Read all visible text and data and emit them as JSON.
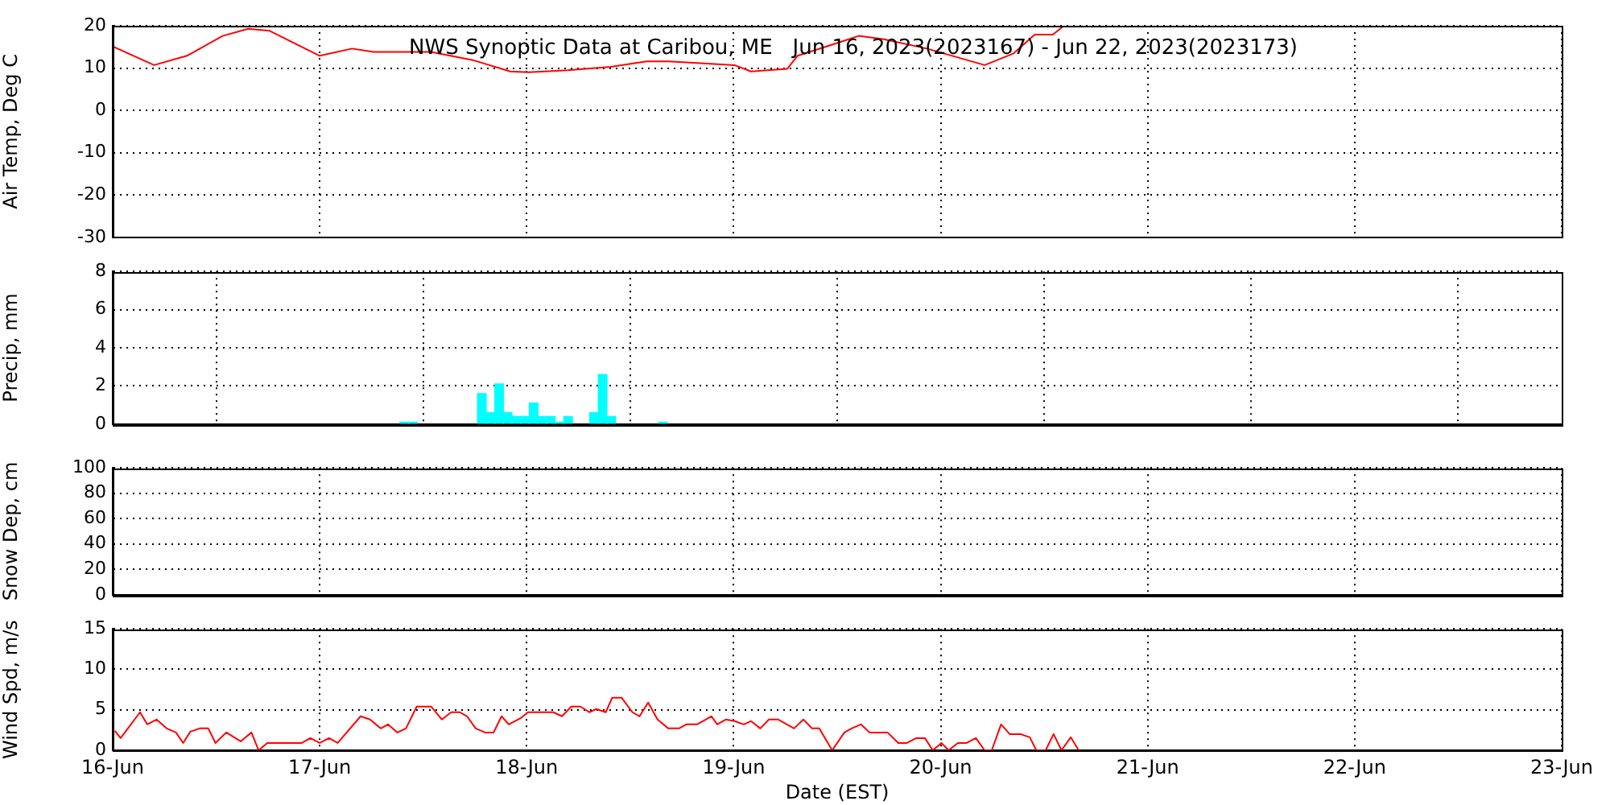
{
  "chart_data": [
    {
      "type": "line",
      "title": "NWS Synoptic Data at Caribou, ME   Jun 16, 2023(2023167) - Jun 22, 2023(2023173)",
      "ylabel": "Air Temp, Deg C",
      "xlim": [
        "2023-06-16",
        "2023-06-23"
      ],
      "xticks": [
        "2023-06-16",
        "2023-06-17",
        "2023-06-18",
        "2023-06-19",
        "2023-06-20",
        "2023-06-21",
        "2023-06-22",
        "2023-06-23"
      ],
      "ylim": [
        -30,
        20
      ],
      "yticks": [
        -30,
        -20,
        -10,
        0,
        10,
        20
      ],
      "tick_labels": "y",
      "grid": true,
      "marker": "none",
      "series": [
        {
          "color": "#ff0000",
          "x": [
            "2023-06-16T00:00",
            "2023-06-16T04:48",
            "2023-06-16T08:36",
            "2023-06-16T12:45",
            "2023-06-16T15:42",
            "2023-06-16T18:12",
            "2023-06-17T00:00",
            "2023-06-17T03:45",
            "2023-06-17T06:15",
            "2023-06-17T12:54",
            "2023-06-17T17:54",
            "2023-06-17T22:06",
            "2023-06-18T00:12",
            "2023-06-18T04:45",
            "2023-06-18T09:45",
            "2023-06-18T13:54",
            "2023-06-18T16:24",
            "2023-06-18T19:45",
            "2023-06-19T00:06",
            "2023-06-19T02:00",
            "2023-06-19T06:12",
            "2023-06-19T07:24",
            "2023-06-19T12:24",
            "2023-06-19T14:30",
            "2023-06-19T17:24",
            "2023-06-19T22:24",
            "2023-06-20T05:06",
            "2023-06-20T08:24",
            "2023-06-20T10:54",
            "2023-06-20T13:00",
            "2023-06-20T14:18"
          ],
          "values": [
            15.1,
            10.7,
            12.9,
            17.6,
            19.3,
            18.8,
            12.9,
            14.6,
            13.8,
            13.8,
            11.8,
            9.2,
            9.0,
            9.5,
            10.3,
            11.6,
            11.6,
            11.2,
            10.7,
            9.2,
            9.8,
            12.9,
            16.2,
            17.6,
            16.8,
            14.6,
            10.7,
            13.4,
            17.9,
            17.9,
            20
          ]
        }
      ]
    },
    {
      "type": "bar",
      "ylabel": "Precip, mm",
      "xlim": [
        "2023-06-16",
        "2023-06-23"
      ],
      "xticks": [
        "2023-06-16",
        "2023-06-17",
        "2023-06-18",
        "2023-06-19",
        "2023-06-20",
        "2023-06-21",
        "2023-06-22",
        "2023-06-23"
      ],
      "ylim": [
        0,
        8
      ],
      "yticks": [
        0,
        2,
        4,
        6,
        8
      ],
      "tick_labels": "y",
      "grid": true,
      "series": [
        {
          "color": "#00ffff",
          "x": [
            "2023-06-17T09:48",
            "2023-06-17T10:48",
            "2023-06-17T18:48",
            "2023-06-17T19:48",
            "2023-06-17T20:48",
            "2023-06-17T21:48",
            "2023-06-17T22:48",
            "2023-06-17T23:48",
            "2023-06-18T00:48",
            "2023-06-18T01:48",
            "2023-06-18T02:48",
            "2023-06-18T03:48",
            "2023-06-18T04:48",
            "2023-06-18T07:48",
            "2023-06-18T08:48",
            "2023-06-18T09:48",
            "2023-06-18T15:48"
          ],
          "values": [
            0.1,
            0.1,
            1.6,
            0.6,
            2.1,
            0.6,
            0.4,
            0.4,
            1.1,
            0.4,
            0.4,
            0.1,
            0.4,
            0.6,
            2.6,
            0.4,
            0.1
          ]
        }
      ]
    },
    {
      "type": "line",
      "ylabel": "Snow Dep, cm",
      "xlim": [
        "2023-06-16",
        "2023-06-23"
      ],
      "xticks": [
        "2023-06-16",
        "2023-06-17",
        "2023-06-18",
        "2023-06-19",
        "2023-06-20",
        "2023-06-21",
        "2023-06-22",
        "2023-06-23"
      ],
      "ylim": [
        0,
        100
      ],
      "yticks": [
        0,
        20,
        40,
        60,
        80,
        100
      ],
      "tick_labels": "y",
      "grid": true
    },
    {
      "type": "line",
      "xlabel": "Date (EST)",
      "ylabel": "Wind Spd, m/s",
      "xlim": [
        "2023-06-16",
        "2023-06-23"
      ],
      "xticks": [
        {
          "value": "2023-06-16",
          "label": "16-Jun"
        },
        {
          "value": "2023-06-17",
          "label": "17-Jun"
        },
        {
          "value": "2023-06-18",
          "label": "18-Jun"
        },
        {
          "value": "2023-06-19",
          "label": "19-Jun"
        },
        {
          "value": "2023-06-20",
          "label": "20-Jun"
        },
        {
          "value": "2023-06-21",
          "label": "21-Jun"
        },
        {
          "value": "2023-06-22",
          "label": "22-Jun"
        },
        {
          "value": "2023-06-23",
          "label": "23-Jun"
        }
      ],
      "ylim": [
        0,
        15
      ],
      "yticks": [
        0,
        5,
        10,
        15
      ],
      "grid": true,
      "marker": "none",
      "series": [
        {
          "color": "#ff0000",
          "x": [
            "2023-06-16T00:15",
            "2023-06-16T00:55",
            "2023-06-16T03:10",
            "2023-06-16T04:00",
            "2023-06-16T05:05",
            "2023-06-16T06:15",
            "2023-06-16T07:20",
            "2023-06-16T08:10",
            "2023-06-16T09:00",
            "2023-06-16T10:05",
            "2023-06-16T11:05",
            "2023-06-16T11:55",
            "2023-06-16T13:10",
            "2023-06-16T14:50",
            "2023-06-16T16:05",
            "2023-06-16T16:55",
            "2023-06-16T17:55",
            "2023-06-16T21:55",
            "2023-06-16T22:55",
            "2023-06-17T00:00",
            "2023-06-17T01:05",
            "2023-06-17T02:05",
            "2023-06-17T04:45",
            "2023-06-17T05:50",
            "2023-06-17T07:05",
            "2023-06-17T07:55",
            "2023-06-17T09:00",
            "2023-06-17T10:00",
            "2023-06-17T11:15",
            "2023-06-17T12:55",
            "2023-06-17T14:10",
            "2023-06-17T15:15",
            "2023-06-17T16:15",
            "2023-06-17T17:05",
            "2023-06-17T18:05",
            "2023-06-17T19:10",
            "2023-06-17T20:10",
            "2023-06-17T21:05",
            "2023-06-17T21:55",
            "2023-06-17T23:20",
            "2023-06-18T00:10",
            "2023-06-18T03:05",
            "2023-06-18T04:05",
            "2023-06-18T05:10",
            "2023-06-18T06:15",
            "2023-06-18T07:15",
            "2023-06-18T08:05",
            "2023-06-18T09:10",
            "2023-06-18T09:55",
            "2023-06-18T11:00",
            "2023-06-18T12:15",
            "2023-06-18T13:05",
            "2023-06-18T14:05",
            "2023-06-18T15:10",
            "2023-06-18T16:25",
            "2023-06-18T17:40",
            "2023-06-18T18:30",
            "2023-06-18T19:45",
            "2023-06-18T21:25",
            "2023-06-18T22:05",
            "2023-06-18T23:05",
            "2023-06-19T00:05",
            "2023-06-19T01:10",
            "2023-06-19T02:00",
            "2023-06-19T03:05",
            "2023-06-19T04:05",
            "2023-06-19T05:10",
            "2023-06-19T06:10",
            "2023-06-19T07:00",
            "2023-06-19T08:05",
            "2023-06-19T09:05",
            "2023-06-19T09:55",
            "2023-06-19T11:25",
            "2023-06-19T12:50",
            "2023-06-19T13:40",
            "2023-06-19T14:45",
            "2023-06-19T15:45",
            "2023-06-19T17:50",
            "2023-06-19T19:05",
            "2023-06-19T20:05",
            "2023-06-19T21:10",
            "2023-06-19T22:10",
            "2023-06-19T23:05",
            "2023-06-20T00:05",
            "2023-06-20T00:55",
            "2023-06-20T02:00",
            "2023-06-20T03:00",
            "2023-06-20T04:05",
            "2023-06-20T05:05",
            "2023-06-20T05:55",
            "2023-06-20T07:00",
            "2023-06-20T08:00",
            "2023-06-20T09:15",
            "2023-06-20T10:20",
            "2023-06-20T11:05",
            "2023-06-20T12:10",
            "2023-06-20T13:05",
            "2023-06-20T14:00",
            "2023-06-20T15:05",
            "2023-06-20T16:00"
          ],
          "values": [
            2.4,
            1.5,
            4.7,
            3.2,
            3.8,
            2.7,
            2.2,
            0.9,
            2.3,
            2.7,
            2.7,
            0.9,
            2.2,
            1.1,
            2.2,
            0,
            0.9,
            0.9,
            1.5,
            0.9,
            1.5,
            0.9,
            4.2,
            3.8,
            2.7,
            3.2,
            2.2,
            2.7,
            5.4,
            5.4,
            3.8,
            4.7,
            4.7,
            4.2,
            2.7,
            2.2,
            2.2,
            4.2,
            3.2,
            4.0,
            4.7,
            4.7,
            4.2,
            5.4,
            5.4,
            4.7,
            5.1,
            4.7,
            6.5,
            6.5,
            4.7,
            4.2,
            5.9,
            3.8,
            2.7,
            2.7,
            3.2,
            3.2,
            4.2,
            3.2,
            3.8,
            3.6,
            3.2,
            3.6,
            2.7,
            3.8,
            3.8,
            3.2,
            2.7,
            3.8,
            2.7,
            2.7,
            0,
            2.2,
            2.7,
            3.2,
            2.2,
            2.2,
            0.9,
            0.9,
            1.5,
            1.5,
            0,
            0.9,
            0,
            0.9,
            0.9,
            1.5,
            0,
            0,
            3.2,
            2.0,
            2.0,
            1.6,
            0,
            0,
            2.0,
            0,
            1.6,
            0
          ]
        }
      ]
    }
  ]
}
